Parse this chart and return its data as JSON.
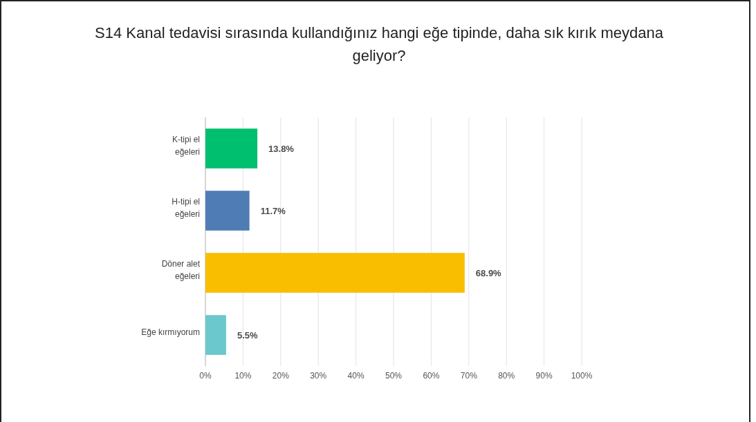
{
  "chart_data": {
    "type": "bar",
    "orientation": "horizontal",
    "title": "S14 Kanal tedavisi sırasında kullandığınız hangi eğe tipinde, daha sık kırık meydana geliyor?",
    "categories": [
      "K-tipi el eğeleri",
      "H-tipi el eğeleri",
      "Döner alet eğeleri",
      "Eğe kırmıyorum"
    ],
    "values": [
      13.8,
      11.7,
      68.9,
      5.5
    ],
    "colors": [
      "#00bf6f",
      "#507cb6",
      "#f9be00",
      "#6bc8cd"
    ],
    "value_labels": [
      "13.8%",
      "11.7%",
      "68.9%",
      "5.5%"
    ],
    "xlim": [
      0,
      100
    ],
    "xticks": [
      {
        "value": 0,
        "label": "0%"
      },
      {
        "value": 10,
        "label": "10%"
      },
      {
        "value": 20,
        "label": "20%"
      },
      {
        "value": 30,
        "label": "30%"
      },
      {
        "value": 40,
        "label": "40%"
      },
      {
        "value": 50,
        "label": "50%"
      },
      {
        "value": 60,
        "label": "60%"
      },
      {
        "value": 70,
        "label": "70%"
      },
      {
        "value": 80,
        "label": "80%"
      },
      {
        "value": 90,
        "label": "90%"
      },
      {
        "value": 100,
        "label": "100%"
      }
    ],
    "grid": "x"
  }
}
